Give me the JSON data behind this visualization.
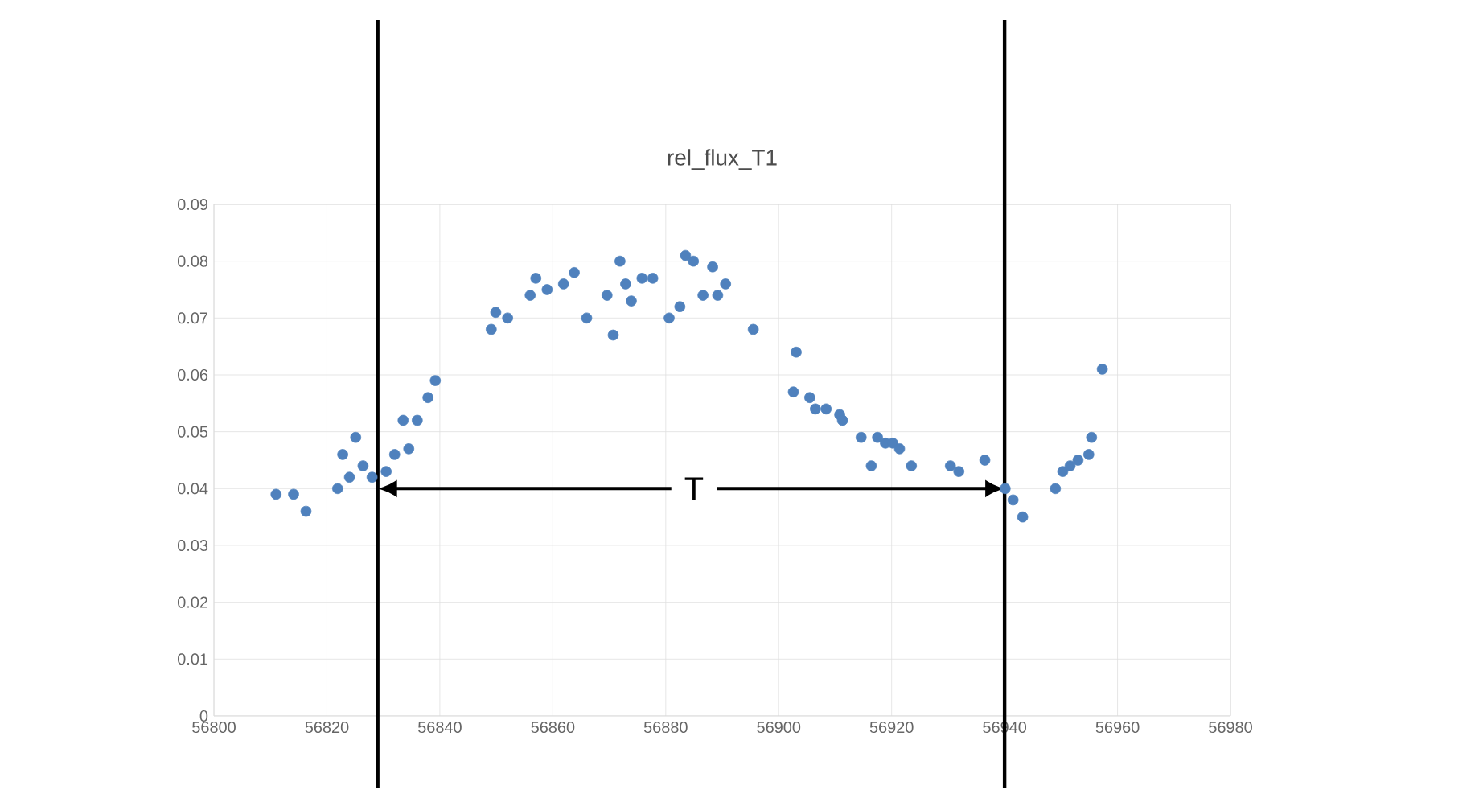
{
  "chart_data": {
    "type": "scatter",
    "title": "rel_flux_T1",
    "x": [
      56811.0,
      56814.1,
      56816.3,
      56821.9,
      56822.8,
      56824.0,
      56825.1,
      56826.4,
      56828.0,
      56830.5,
      56832.0,
      56833.5,
      56834.5,
      56836.0,
      56837.9,
      56839.2,
      56849.1,
      56849.9,
      56852.0,
      56856.0,
      56857.0,
      56859.0,
      56861.9,
      56863.8,
      56866.0,
      56869.6,
      56870.7,
      56871.9,
      56872.9,
      56873.9,
      56875.8,
      56877.7,
      56880.6,
      56882.5,
      56883.5,
      56884.9,
      56886.6,
      56888.3,
      56889.2,
      56890.6,
      56895.5,
      56902.6,
      56903.1,
      56905.5,
      56906.5,
      56908.4,
      56910.8,
      56911.3,
      56914.6,
      56916.4,
      56917.5,
      56918.9,
      56920.2,
      56921.4,
      56923.5,
      56930.4,
      56931.9,
      56936.5,
      56940.1,
      56941.5,
      56943.2,
      56949.0,
      56950.3,
      56951.6,
      56953.0,
      56954.9,
      56955.4,
      56957.3
    ],
    "values": [
      0.039,
      0.039,
      0.036,
      0.04,
      0.046,
      0.042,
      0.049,
      0.044,
      0.042,
      0.043,
      0.046,
      0.052,
      0.047,
      0.052,
      0.056,
      0.059,
      0.068,
      0.071,
      0.07,
      0.074,
      0.077,
      0.075,
      0.076,
      0.078,
      0.07,
      0.074,
      0.067,
      0.08,
      0.076,
      0.073,
      0.077,
      0.077,
      0.07,
      0.072,
      0.081,
      0.08,
      0.074,
      0.079,
      0.074,
      0.076,
      0.068,
      0.057,
      0.064,
      0.056,
      0.054,
      0.054,
      0.053,
      0.052,
      0.049,
      0.044,
      0.049,
      0.048,
      0.048,
      0.047,
      0.044,
      0.044,
      0.043,
      0.045,
      0.04,
      0.038,
      0.035,
      0.04,
      0.043,
      0.044,
      0.045,
      0.046,
      0.049,
      0.061
    ],
    "color": "#4f81bd",
    "marker": "circle",
    "xlim": [
      56800,
      56980
    ],
    "xticks": [
      56800,
      56820,
      56840,
      56860,
      56880,
      56900,
      56920,
      56940,
      56960,
      56980
    ],
    "ylim": [
      0,
      0.09
    ],
    "yticks": [
      0,
      0.01,
      0.02,
      0.03,
      0.04,
      0.05,
      0.06,
      0.07,
      0.08,
      0.09
    ],
    "grid": true,
    "ref_lines": [
      {
        "axis": "x",
        "value": 56829,
        "color": "#000000",
        "line_style": "solid"
      },
      {
        "axis": "x",
        "value": 56940,
        "color": "#000000",
        "line_style": "solid"
      }
    ],
    "annotations": [
      {
        "text": "T",
        "x": 56885,
        "y": 0.04
      }
    ]
  }
}
